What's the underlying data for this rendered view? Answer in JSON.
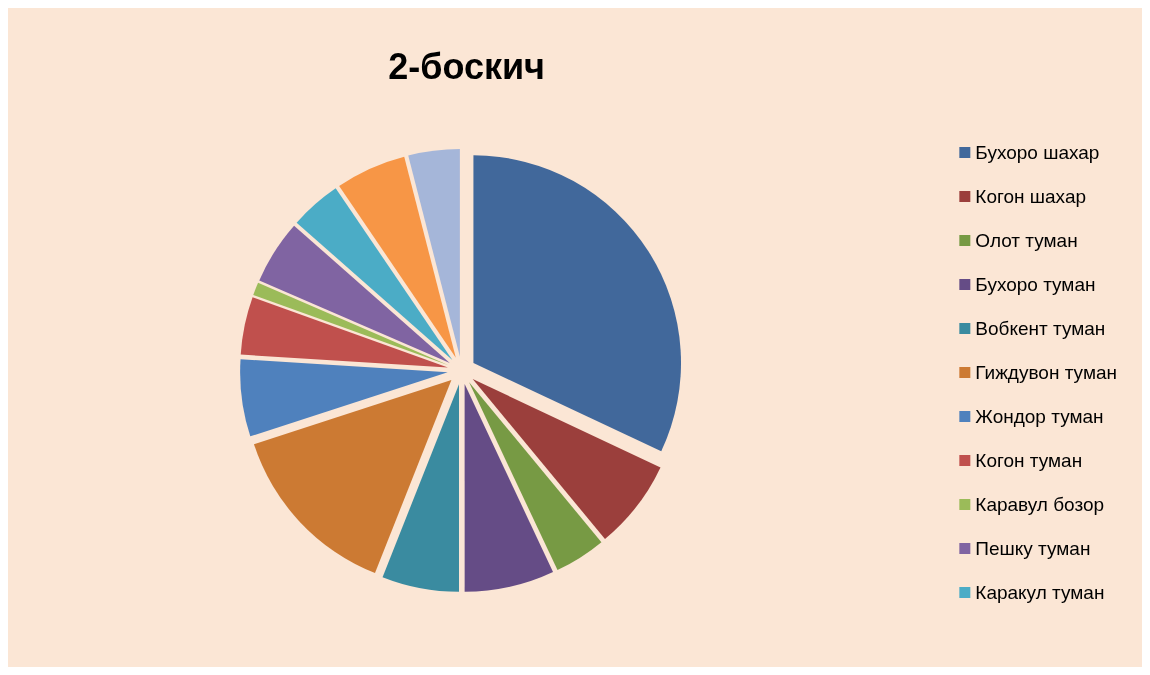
{
  "chart_data": {
    "type": "pie",
    "title": "2-боскич",
    "categories": [
      "Бухоро шахар",
      "Когон шахар",
      "Олот туман",
      "Бухоро туман",
      "Вобкент туман",
      "Гиждувон туман",
      "Жондор туман",
      "Когон туман",
      "Каравул бозор",
      "Пешку туман",
      "Каракул туман",
      null,
      null
    ],
    "values": [
      32,
      7,
      4,
      7,
      6,
      14,
      6,
      4.5,
      1,
      5,
      4,
      5.5,
      4
    ],
    "colors": [
      "#41689b",
      "#9b3f3c",
      "#779a44",
      "#654c86",
      "#3a8ba0",
      "#cc7a33",
      "#4f81bd",
      "#c0504d",
      "#9bbb59",
      "#8064a2",
      "#4bacc6",
      "#f79646",
      "#a5b6d9"
    ],
    "legend": "right"
  }
}
